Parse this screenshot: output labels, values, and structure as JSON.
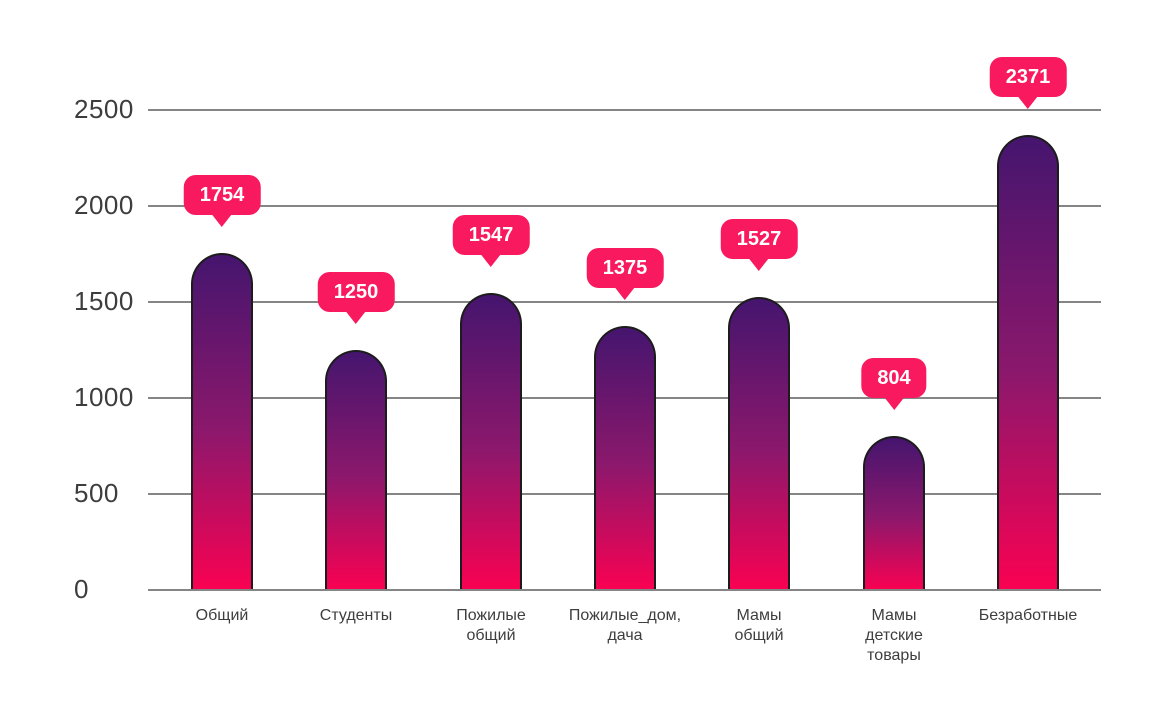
{
  "chart_data": {
    "type": "bar",
    "title": "",
    "xlabel": "",
    "ylabel": "",
    "categories": [
      "Общий",
      "Студенты",
      "Пожилые общий",
      "Пожилые_дом, дача",
      "Мамы общий",
      "Мамы детские товары",
      "Безработные"
    ],
    "category_lines": [
      [
        "Общий"
      ],
      [
        "Студенты"
      ],
      [
        "Пожилые",
        "общий"
      ],
      [
        "Пожилые_дом,",
        "дача"
      ],
      [
        "Мамы",
        "общий"
      ],
      [
        "Мамы",
        "детские",
        "товары"
      ],
      [
        "Безработные"
      ]
    ],
    "values": [
      1754,
      1250,
      1547,
      1375,
      1527,
      804,
      2371
    ],
    "data_labels": [
      "1754",
      "1250",
      "1547",
      "1375",
      "1527",
      "804",
      "2371"
    ],
    "ylim": [
      0,
      2500
    ],
    "yticks": [
      0,
      500,
      1000,
      1500,
      2000,
      2500
    ],
    "ytick_labels": [
      "0",
      "500",
      "1000",
      "1500",
      "2000",
      "2500"
    ],
    "grid": true,
    "legend": false,
    "colors": {
      "background": "#ffffff",
      "bar_gradient_top": "#45156e",
      "bar_gradient_mid": "#8b186c",
      "bar_gradient_bottom": "#fa0152",
      "bar_border": "#1c1c1c",
      "badge_background": "#f9195e",
      "badge_text": "#ffffff",
      "gridline": "#858585",
      "axis_text": "#3d3d3d"
    }
  }
}
